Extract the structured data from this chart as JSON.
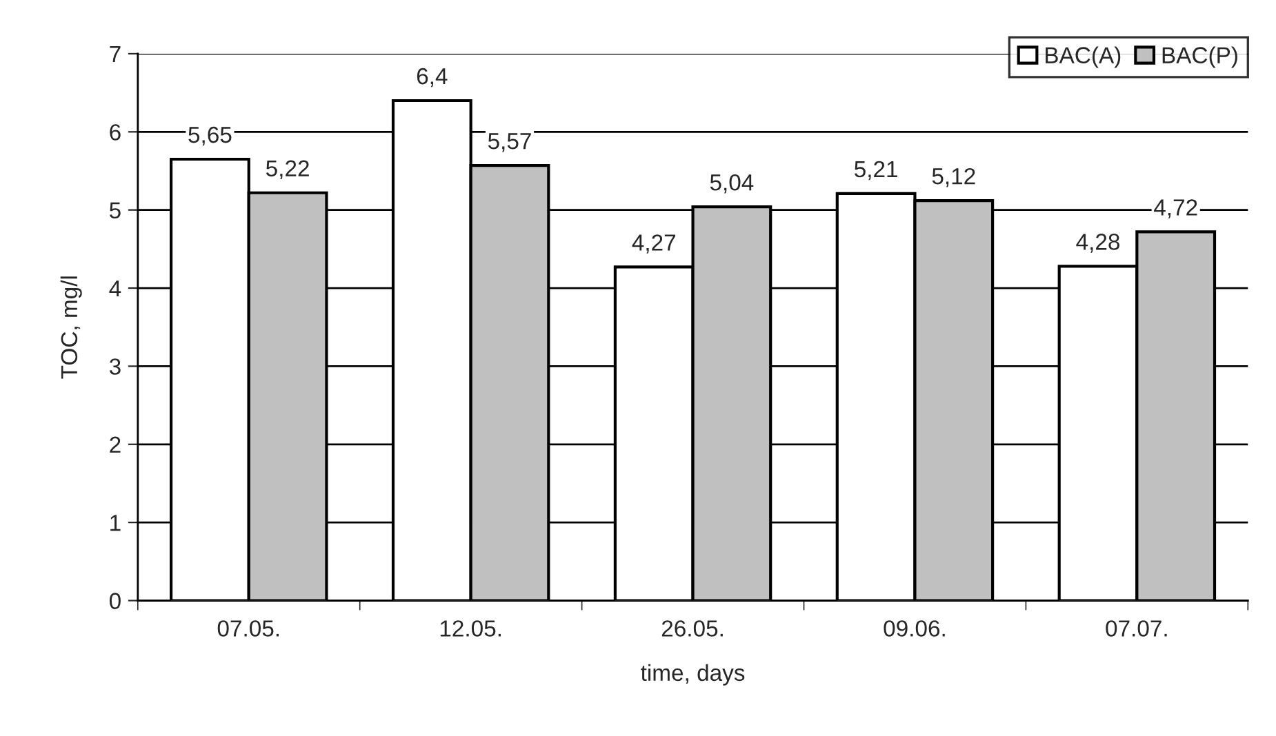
{
  "chart_data": {
    "type": "bar",
    "xlabel": "time, days",
    "ylabel": "TOC, mg/l",
    "categories": [
      "07.05.",
      "12.05.",
      "26.05.",
      "09.06.",
      "07.07."
    ],
    "series": [
      {
        "name": "BAC(A)",
        "color": "#ffffff",
        "values": [
          5.65,
          6.4,
          4.27,
          5.21,
          4.28
        ],
        "value_labels": [
          "5,65",
          "6,4",
          "4,27",
          "5,21",
          "4,28"
        ]
      },
      {
        "name": "BAC(P)",
        "color": "#c0c0c0",
        "values": [
          5.22,
          5.57,
          5.04,
          5.12,
          4.72
        ],
        "value_labels": [
          "5,22",
          "5,57",
          "5,04",
          "5,12",
          "4,72"
        ]
      }
    ],
    "ylim": [
      0,
      7
    ],
    "yticks": [
      0,
      1,
      2,
      3,
      4,
      5,
      6,
      7
    ],
    "grid": "y",
    "legend": "top right"
  }
}
